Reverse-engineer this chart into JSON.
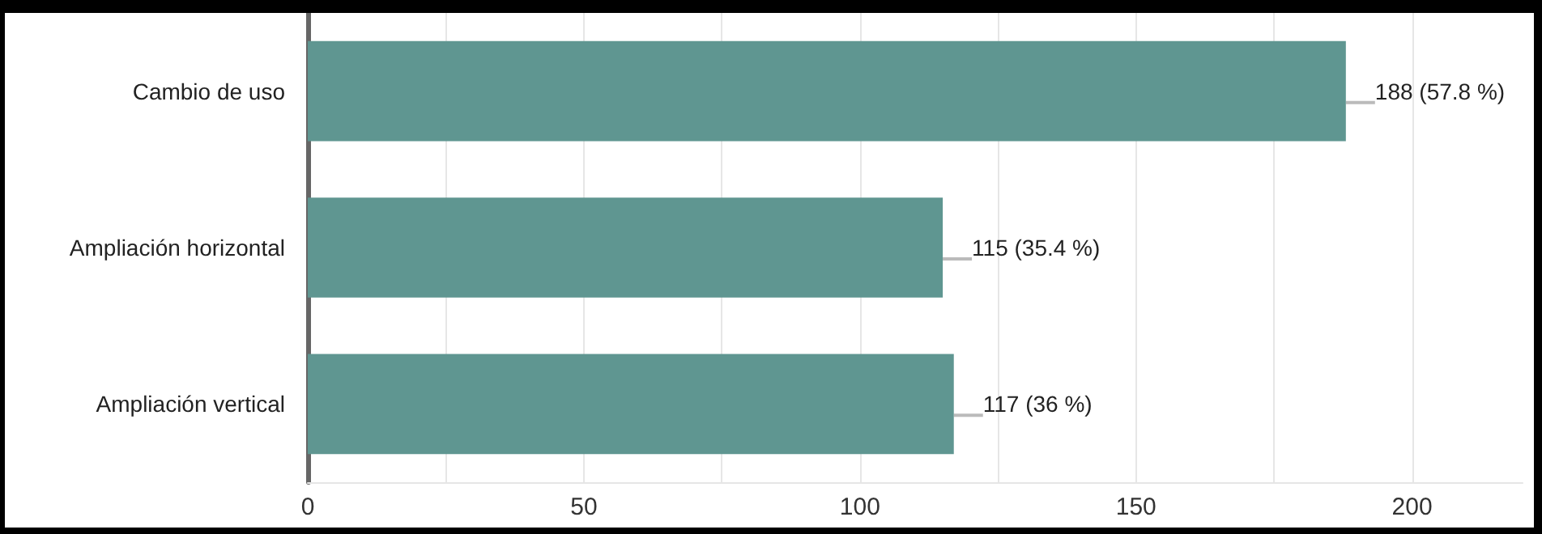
{
  "chart_data": {
    "type": "bar",
    "orientation": "horizontal",
    "categories": [
      "Cambio de uso",
      "Ampliación horizontal",
      "Ampliación vertical"
    ],
    "values": [
      188,
      115,
      117
    ],
    "color": "#5f9691",
    "value_labels": [
      "188 (57.8 %)",
      "115 (35.4 %)",
      "117 (36 %)"
    ],
    "xlim": [
      0,
      220
    ],
    "xticks": [
      0,
      {
        "value": 25,
        "label": null
      },
      50,
      {
        "value": 75,
        "label": null
      },
      100,
      {
        "value": 125,
        "label": null
      },
      150,
      {
        "value": 175,
        "label": null
      },
      200
    ],
    "grid": "x"
  }
}
